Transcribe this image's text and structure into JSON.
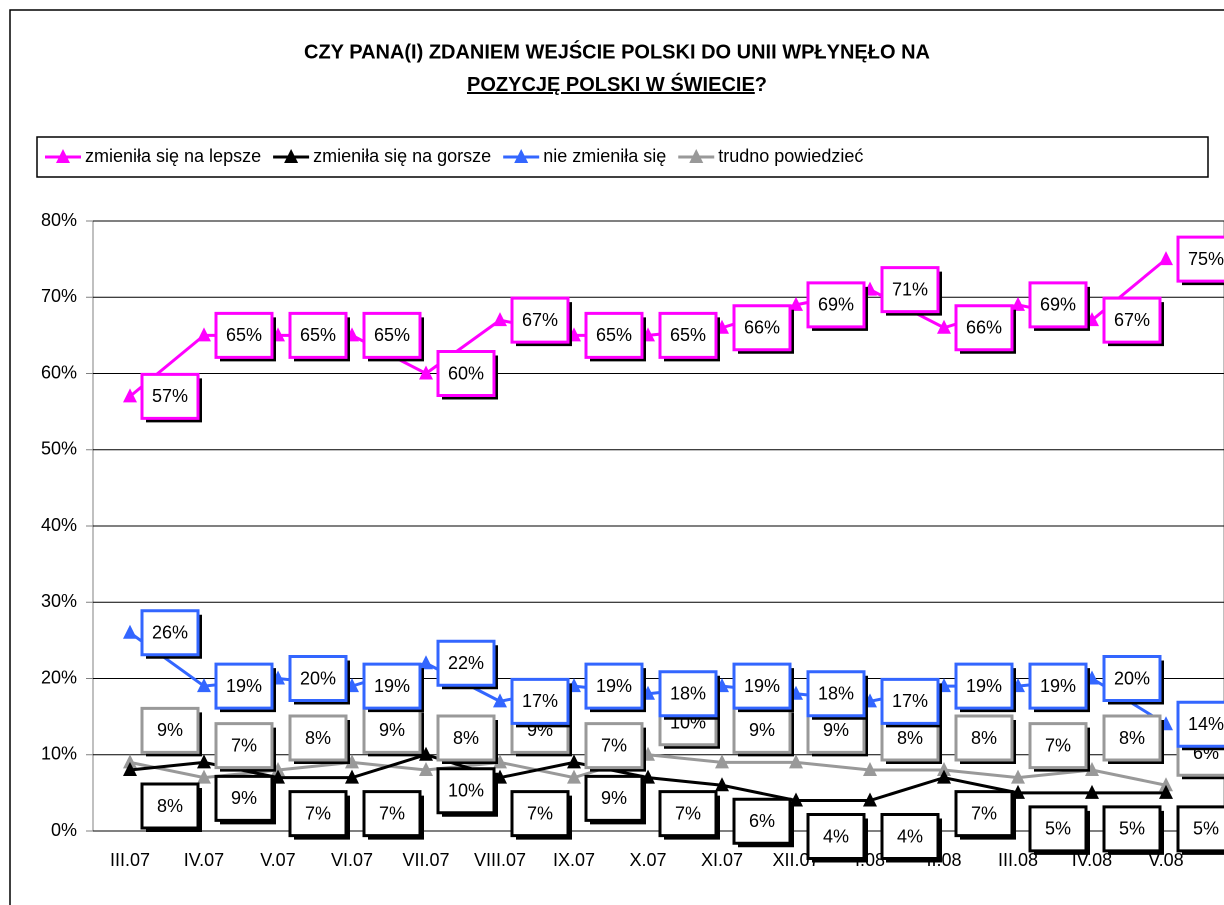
{
  "chart_data": {
    "type": "line",
    "title": {
      "line1": "CZY PANA(I) ZDANIEM WEJŚCIE POLSKI DO UNII WPŁYNĘŁO NA",
      "line2_underlined": "POZYCJĘ POLSKI W ŚWIECIE",
      "line2_end": "?"
    },
    "categories": [
      "III.07",
      "IV.07",
      "V.07",
      "VI.07",
      "VII.07",
      "VIII.07",
      "IX.07",
      "X.07",
      "XI.07",
      "XII.07",
      "I.08",
      "II.08",
      "III.08",
      "IV.08",
      "V.08"
    ],
    "series": [
      {
        "name": "zmieniła się na lepsze",
        "color": "#ff00ff",
        "values": [
          57,
          65,
          65,
          65,
          60,
          67,
          65,
          65,
          66,
          69,
          71,
          66,
          69,
          67,
          75
        ],
        "value_labels": [
          "57%",
          "65%",
          "65%",
          "65%",
          "60%",
          "67%",
          "65%",
          "65%",
          "66%",
          "69%",
          "71%",
          "66%",
          "69%",
          "67%",
          "75%"
        ]
      },
      {
        "name": "zmieniła się na gorsze",
        "color": "#000000",
        "values": [
          8,
          9,
          7,
          7,
          10,
          7,
          9,
          7,
          6,
          4,
          4,
          7,
          5,
          5,
          5
        ],
        "value_labels": [
          "8%",
          "9%",
          "7%",
          "7%",
          "10%",
          "7%",
          "9%",
          "7%",
          "6%",
          "4%",
          "4%",
          "7%",
          "5%",
          "5%",
          "5%"
        ]
      },
      {
        "name": "nie zmieniła się",
        "color": "#3366ff",
        "values": [
          26,
          19,
          20,
          19,
          22,
          17,
          19,
          18,
          19,
          18,
          17,
          19,
          19,
          20,
          14
        ],
        "value_labels": [
          "26%",
          "19%",
          "20%",
          "19%",
          "22%",
          "17%",
          "19%",
          "18%",
          "19%",
          "18%",
          "17%",
          "19%",
          "19%",
          "20%",
          "14%"
        ]
      },
      {
        "name": "trudno powiedzieć",
        "color": "#999999",
        "values": [
          9,
          7,
          8,
          9,
          8,
          9,
          7,
          10,
          9,
          9,
          8,
          8,
          7,
          8,
          6
        ],
        "value_labels": [
          "9%",
          "7%",
          "8%",
          "9%",
          "8%",
          "9%",
          "7%",
          "10%",
          "9%",
          "9%",
          "8%",
          "8%",
          "7%",
          "8%",
          "6%"
        ]
      }
    ],
    "ylim": [
      0,
      80
    ],
    "yticks": [
      {
        "value": 0,
        "label": "0%"
      },
      {
        "value": 10,
        "label": "10%"
      },
      {
        "value": 20,
        "label": "20%"
      },
      {
        "value": 30,
        "label": "30%"
      },
      {
        "value": 40,
        "label": "40%"
      },
      {
        "value": 50,
        "label": "50%"
      },
      {
        "value": 60,
        "label": "60%"
      },
      {
        "value": 70,
        "label": "70%"
      },
      {
        "value": 80,
        "label": "80%"
      }
    ],
    "grid": true,
    "legend": "top"
  }
}
